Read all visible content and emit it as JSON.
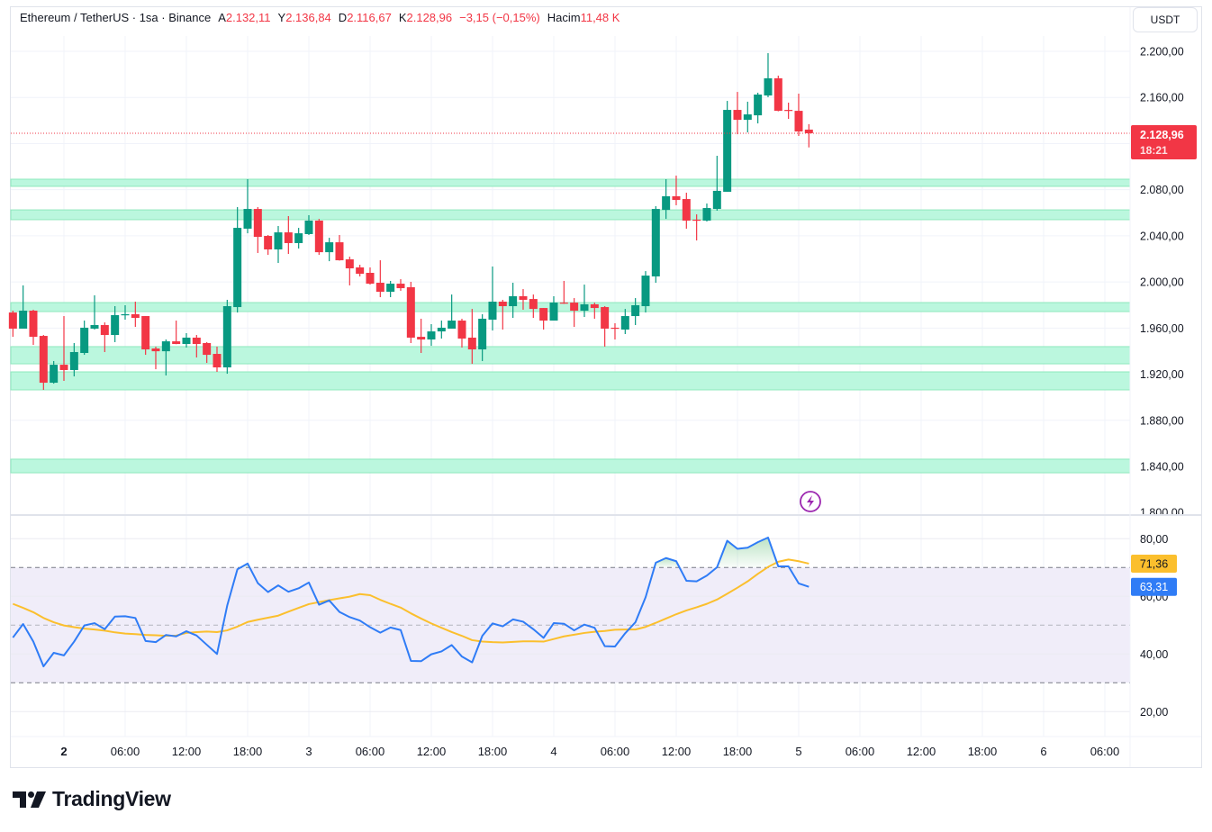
{
  "header": {
    "symbol": "Ethereum / TetherUS · 1sa · Binance",
    "open_label": "A",
    "open": "2.132,11",
    "high_label": "Y",
    "high": "2.136,84",
    "low_label": "D",
    "low": "2.116,67",
    "close_label": "K",
    "close": "2.128,96",
    "change": "−3,15 (−0,15%)",
    "volume_label": "Hacim",
    "volume": "11,48 K"
  },
  "currency_button": "USDT",
  "last_price": {
    "label": "2.128,96",
    "countdown": "18:21",
    "value": 2128.96
  },
  "brand": "TradingView",
  "colors": {
    "up": "#089981",
    "down": "#f23645",
    "rsi": "#2f7cf6",
    "rsi_ma": "#fbbf2d",
    "zone_fill": "#bbf7de",
    "zone_border": "#8ee8bd",
    "rsi_band": "#f0edf9",
    "alert_icon": "#9c27b0"
  },
  "icons": {
    "alert": "lightning-icon",
    "logo": "tradingview-logo-icon"
  },
  "chart_data": [
    {
      "type": "candlestick",
      "title": "Ethereum / TetherUS · 1sa · Binance",
      "ylim": [
        1800,
        2200
      ],
      "y_ticks": [
        {
          "value": 2200,
          "label": "2.200,00"
        },
        {
          "value": 2160,
          "label": "2.160,00"
        },
        {
          "value": 2120,
          "label": ""
        },
        {
          "value": 2080,
          "label": "2.080,00"
        },
        {
          "value": 2040,
          "label": "2.040,00"
        },
        {
          "value": 2000,
          "label": "2.000,00"
        },
        {
          "value": 1960,
          "label": "1.960,00"
        },
        {
          "value": 1920,
          "label": "1.920,00"
        },
        {
          "value": 1880,
          "label": "1.880,00"
        },
        {
          "value": 1840,
          "label": "1.840,00"
        },
        {
          "value": 1800,
          "label": "1.800,00"
        }
      ],
      "x_ticks": [
        {
          "t": "2 00:00",
          "label": "2",
          "bold": true
        },
        {
          "t": "2 06:00",
          "label": "06:00"
        },
        {
          "t": "2 12:00",
          "label": "12:00"
        },
        {
          "t": "2 18:00",
          "label": "18:00"
        },
        {
          "t": "3 00:00",
          "label": "3"
        },
        {
          "t": "3 06:00",
          "label": "06:00"
        },
        {
          "t": "3 12:00",
          "label": "12:00"
        },
        {
          "t": "3 18:00",
          "label": "18:00"
        },
        {
          "t": "4 00:00",
          "label": "4"
        },
        {
          "t": "4 06:00",
          "label": "06:00"
        },
        {
          "t": "4 12:00",
          "label": "12:00"
        },
        {
          "t": "4 18:00",
          "label": "18:00"
        },
        {
          "t": "5 00:00",
          "label": "5"
        },
        {
          "t": "5 06:00",
          "label": "06:00"
        },
        {
          "t": "5 12:00",
          "label": "12:00"
        },
        {
          "t": "5 18:00",
          "label": "18:00"
        },
        {
          "t": "6 00:00",
          "label": "6"
        },
        {
          "t": "6 06:00",
          "label": "06:00"
        }
      ],
      "zones": [
        [
          2082.9,
          2089.1
        ],
        [
          2054.0,
          2062.5
        ],
        [
          1974.3,
          1982.1
        ],
        [
          1929.0,
          1943.9
        ],
        [
          1906.4,
          1922.0
        ],
        [
          1834.5,
          1846.3
        ]
      ],
      "candles_fields": [
        "t",
        "open",
        "high",
        "low",
        "close"
      ],
      "candles": [
        [
          "1 19:00",
          1973.5,
          1975.1,
          1952.4,
          1959.5
        ],
        [
          "1 20:00",
          1959.5,
          1997.0,
          1959.5,
          1975.1
        ],
        [
          "1 21:00",
          1975.1,
          1975.9,
          1945.4,
          1952.4
        ],
        [
          "1 22:00",
          1953.2,
          1954.0,
          1906.4,
          1912.6
        ],
        [
          "1 23:00",
          1912.6,
          1931.4,
          1911.8,
          1928.2
        ],
        [
          "2 00:00",
          1928.2,
          1970.4,
          1914.2,
          1923.6
        ],
        [
          "2 01:00",
          1923.6,
          1947.0,
          1918.1,
          1939.2
        ],
        [
          "2 02:00",
          1938.4,
          1966.5,
          1936.8,
          1960.3
        ],
        [
          "2 03:00",
          1959.5,
          1988.4,
          1958.7,
          1962.6
        ],
        [
          "2 04:00",
          1962.6,
          1964.9,
          1939.2,
          1954.0
        ],
        [
          "2 05:00",
          1954.0,
          1979.0,
          1947.8,
          1971.2
        ],
        [
          "2 06:00",
          1971.2,
          1979.8,
          1967.3,
          1972.0
        ],
        [
          "2 07:00",
          1972.0,
          1982.9,
          1961.0,
          1968.8
        ],
        [
          "2 08:00",
          1970.4,
          1970.4,
          1936.8,
          1941.5
        ],
        [
          "2 09:00",
          1942.3,
          1943.9,
          1924.3,
          1939.9
        ],
        [
          "2 10:00",
          1939.9,
          1950.1,
          1918.9,
          1948.5
        ],
        [
          "2 11:00",
          1948.5,
          1966.5,
          1946.0,
          1946.2
        ],
        [
          "2 12:00",
          1946.2,
          1955.6,
          1943.1,
          1951.7
        ],
        [
          "2 13:00",
          1951.7,
          1954.0,
          1934.5,
          1946.2
        ],
        [
          "2 14:00",
          1947.0,
          1947.8,
          1929.8,
          1936.8
        ],
        [
          "2 15:00",
          1937.6,
          1943.9,
          1922.0,
          1925.9
        ],
        [
          "2 16:00",
          1925.9,
          1984.5,
          1920.4,
          1979.0
        ],
        [
          "2 17:00",
          1978.2,
          2064.9,
          1973.5,
          2046.9
        ],
        [
          "2 18:00",
          2046.2,
          2089.1,
          2042.2,
          2063.3
        ],
        [
          "2 19:00",
          2063.3,
          2064.9,
          2025.1,
          2039.1
        ],
        [
          "2 20:00",
          2039.9,
          2040.7,
          2023.5,
          2028.2
        ],
        [
          "2 21:00",
          2028.2,
          2048.5,
          2016.5,
          2043.0
        ],
        [
          "2 22:00",
          2043.0,
          2057.1,
          2024.3,
          2033.7
        ],
        [
          "2 23:00",
          2033.7,
          2046.9,
          2029.0,
          2042.2
        ],
        [
          "3 00:00",
          2041.5,
          2057.9,
          2040.7,
          2053.2
        ],
        [
          "3 01:00",
          2053.2,
          2054.7,
          2023.5,
          2025.8
        ],
        [
          "3 02:00",
          2025.8,
          2038.3,
          2018.0,
          2034.4
        ],
        [
          "3 03:00",
          2034.4,
          2040.7,
          2018.5,
          2018.8
        ],
        [
          "3 04:00",
          2019.6,
          2021.9,
          1997.0,
          2011.8
        ],
        [
          "3 05:00",
          2012.6,
          2014.9,
          2004.8,
          2007.1
        ],
        [
          "3 06:00",
          2007.9,
          2012.6,
          1997.7,
          1998.5
        ],
        [
          "3 07:00",
          1999.3,
          2018.8,
          1986.8,
          1991.5
        ],
        [
          "3 08:00",
          1991.5,
          2000.9,
          1986.8,
          1998.5
        ],
        [
          "3 09:00",
          1998.5,
          2002.4,
          1992.3,
          1994.6
        ],
        [
          "3 10:00",
          1995.4,
          2000.1,
          1947.0,
          1951.7
        ],
        [
          "3 11:00",
          1952.4,
          1968.1,
          1938.4,
          1950.1
        ],
        [
          "3 12:00",
          1950.1,
          1963.4,
          1944.6,
          1957.1
        ],
        [
          "3 13:00",
          1957.1,
          1966.5,
          1950.9,
          1960.3
        ],
        [
          "3 14:00",
          1959.5,
          1989.1,
          1959.5,
          1966.5
        ],
        [
          "3 15:00",
          1966.5,
          1968.1,
          1943.1,
          1950.9
        ],
        [
          "3 16:00",
          1951.7,
          1976.6,
          1929.0,
          1941.5
        ],
        [
          "3 17:00",
          1941.5,
          1972.0,
          1931.4,
          1968.1
        ],
        [
          "3 18:00",
          1967.3,
          2013.4,
          1957.9,
          1982.9
        ],
        [
          "3 19:00",
          1982.9,
          1984.5,
          1958.7,
          1979.0
        ],
        [
          "3 20:00",
          1979.0,
          1999.3,
          1968.8,
          1987.6
        ],
        [
          "3 21:00",
          1987.6,
          1993.8,
          1975.9,
          1984.5
        ],
        [
          "3 22:00",
          1985.2,
          1989.1,
          1968.8,
          1976.6
        ],
        [
          "3 23:00",
          1977.4,
          1977.4,
          1958.7,
          1966.5
        ],
        [
          "4 00:00",
          1966.5,
          1987.6,
          1966.5,
          1982.1
        ],
        [
          "4 01:00",
          1982.1,
          2000.9,
          1981.0,
          1981.3
        ],
        [
          "4 02:00",
          1982.1,
          1986.0,
          1961.0,
          1975.1
        ],
        [
          "4 03:00",
          1975.1,
          1997.7,
          1969.6,
          1980.6
        ],
        [
          "4 04:00",
          1980.6,
          1982.1,
          1968.1,
          1977.4
        ],
        [
          "4 05:00",
          1978.2,
          1979.0,
          1943.9,
          1959.5
        ],
        [
          "4 06:00",
          1960.3,
          1964.2,
          1950.1,
          1959.5
        ],
        [
          "4 07:00",
          1958.7,
          1976.6,
          1954.8,
          1970.4
        ],
        [
          "4 08:00",
          1970.4,
          1986.0,
          1962.6,
          1979.8
        ],
        [
          "4 09:00",
          1979.0,
          2009.4,
          1973.5,
          2005.5
        ],
        [
          "4 10:00",
          2004.8,
          2065.7,
          1999.3,
          2063.3
        ],
        [
          "4 11:00",
          2062.5,
          2089.1,
          2054.7,
          2074.3
        ],
        [
          "4 12:00",
          2074.3,
          2092.2,
          2066.5,
          2071.1
        ],
        [
          "4 13:00",
          2071.9,
          2077.4,
          2046.2,
          2053.2
        ],
        [
          "4 14:00",
          2054.0,
          2058.6,
          2036.0,
          2053.2
        ],
        [
          "4 15:00",
          2053.2,
          2068.0,
          2052.4,
          2064.1
        ],
        [
          "4 16:00",
          2063.3,
          2109.4,
          2061.8,
          2079.0
        ],
        [
          "4 17:00",
          2078.2,
          2157.0,
          2078.2,
          2149.2
        ],
        [
          "4 18:00",
          2149.2,
          2164.8,
          2128.1,
          2140.6
        ],
        [
          "4 19:00",
          2140.6,
          2156.3,
          2129.7,
          2145.3
        ],
        [
          "4 20:00",
          2144.5,
          2164.1,
          2137.5,
          2162.5
        ],
        [
          "4 21:00",
          2161.7,
          2198.4,
          2160.2,
          2176.6
        ],
        [
          "4 22:00",
          2176.6,
          2178.9,
          2148.0,
          2148.4
        ],
        [
          "4 23:00",
          2149.2,
          2155.5,
          2141.4,
          2148.4
        ],
        [
          "5 00:00",
          2148.4,
          2163.3,
          2126.6,
          2130.5
        ],
        [
          "5 01:00",
          2132.11,
          2136.84,
          2116.67,
          2128.96
        ]
      ]
    },
    {
      "type": "line",
      "ylim": [
        10,
        90
      ],
      "y_ticks": [
        {
          "value": 80,
          "label": "80,00"
        },
        {
          "value": 60,
          "label": "60,00"
        },
        {
          "value": 40,
          "label": "40,00"
        },
        {
          "value": 20,
          "label": "20,00"
        }
      ],
      "levels": [
        70,
        50,
        30
      ],
      "band": [
        30,
        70
      ],
      "series": [
        {
          "key": "rsi",
          "last_label": "63,31",
          "values": [
            45.7,
            50.4,
            44.3,
            35.7,
            40.4,
            39.5,
            44.3,
            49.9,
            50.7,
            48.6,
            53.0,
            53.1,
            52.5,
            44.5,
            44.1,
            46.6,
            46.1,
            47.9,
            46.4,
            43.2,
            40.0,
            56.8,
            69.4,
            71.4,
            64.6,
            61.5,
            63.8,
            61.6,
            62.8,
            64.8,
            57.1,
            58.6,
            54.6,
            52.8,
            51.6,
            49.3,
            47.4,
            49.2,
            48.3,
            37.6,
            37.5,
            39.9,
            40.9,
            43.1,
            39.1,
            37.1,
            46.3,
            50.6,
            49.6,
            52.0,
            51.2,
            48.6,
            45.6,
            50.7,
            50.5,
            48.2,
            50.2,
            49.1,
            42.7,
            42.6,
            47.2,
            51.0,
            59.7,
            71.7,
            73.3,
            72.2,
            65.4,
            65.2,
            67.2,
            70.1,
            79.3,
            76.5,
            76.9,
            78.8,
            80.4,
            70.4,
            70.4,
            64.5,
            63.31
          ]
        },
        {
          "key": "rsi_ma",
          "last_label": "71,36",
          "values": [
            57.4,
            56.0,
            54.5,
            52.5,
            51.0,
            49.9,
            49.3,
            48.8,
            48.5,
            48.1,
            47.5,
            47.1,
            46.9,
            46.6,
            46.5,
            46.3,
            46.4,
            47.3,
            47.6,
            47.8,
            47.6,
            48.2,
            49.5,
            51.1,
            51.9,
            52.6,
            53.3,
            54.7,
            56.0,
            57.3,
            58.0,
            58.7,
            59.3,
            59.9,
            60.8,
            60.4,
            58.8,
            57.4,
            56.1,
            54.1,
            52.3,
            50.6,
            49.1,
            47.6,
            46.3,
            44.8,
            44.3,
            44.1,
            44.0,
            44.2,
            44.4,
            44.4,
            44.3,
            45.2,
            46.1,
            46.7,
            47.3,
            47.7,
            48.0,
            48.4,
            48.5,
            48.5,
            49.4,
            50.8,
            52.3,
            53.8,
            55.1,
            56.2,
            57.4,
            58.9,
            60.9,
            63.0,
            65.2,
            67.8,
            70.2,
            72.0,
            72.8,
            72.2,
            71.36
          ]
        }
      ]
    }
  ]
}
